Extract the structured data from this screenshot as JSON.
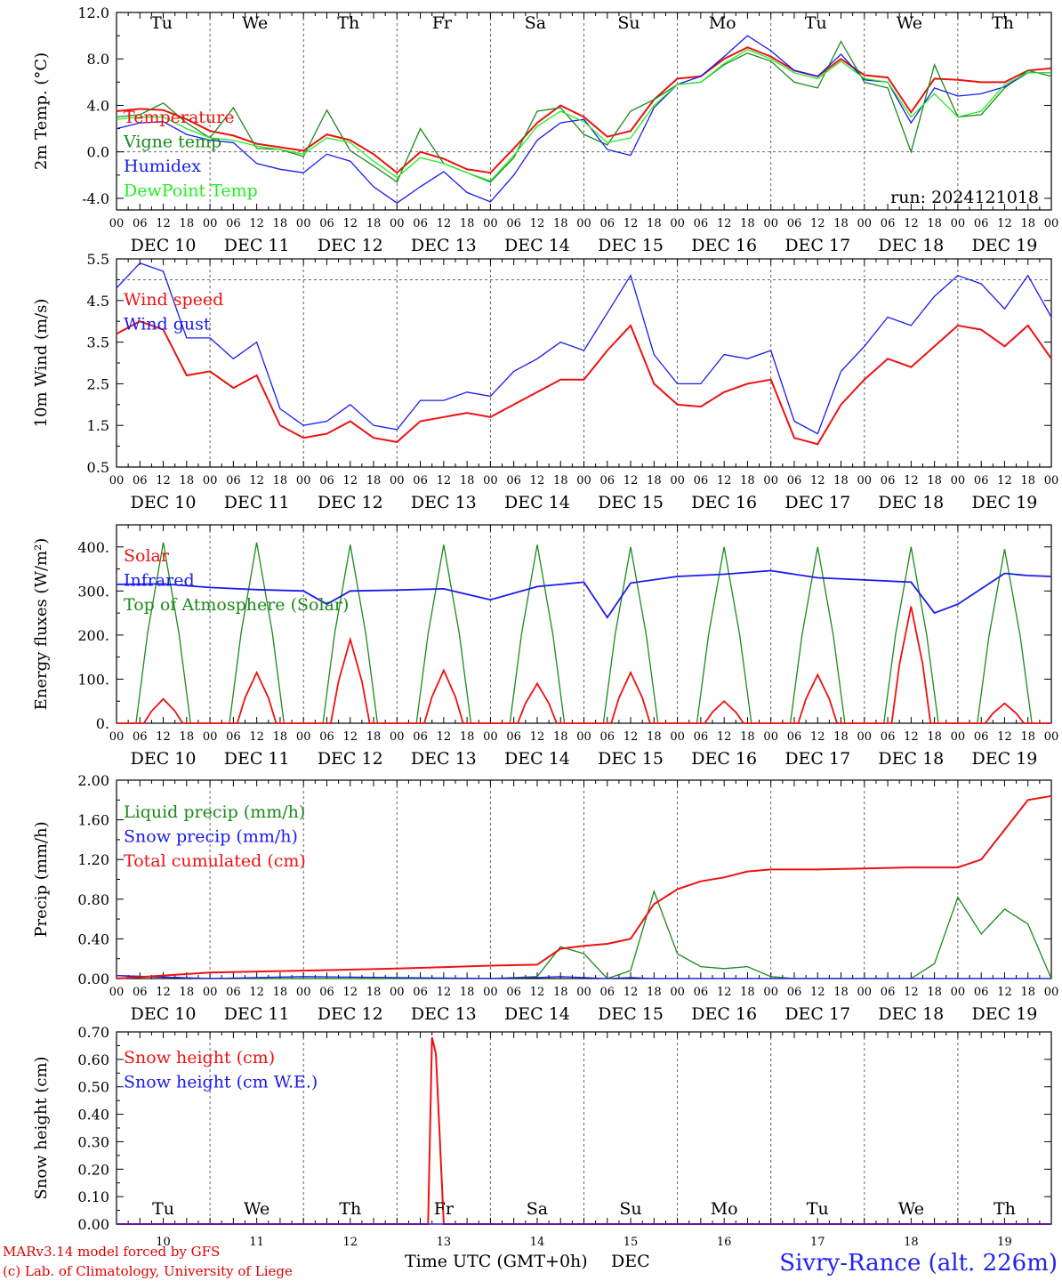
{
  "days": [
    "10",
    "11",
    "12",
    "13",
    "14",
    "15",
    "16",
    "17",
    "18",
    "19"
  ],
  "date_labels": [
    "DEC 10",
    "DEC 11",
    "DEC 12",
    "DEC 13",
    "DEC 14",
    "DEC 15",
    "DEC 16",
    "DEC 17",
    "DEC 18",
    "DEC 19"
  ],
  "hour_ticks": [
    "00",
    "06",
    "12",
    "18"
  ],
  "weekdays": [
    {
      "label": "Tu",
      "color": "#000000"
    },
    {
      "label": "We",
      "color": "#000000"
    },
    {
      "label": "Th",
      "color": "#000000"
    },
    {
      "label": "Fr",
      "color": "#000000"
    },
    {
      "label": "Sa",
      "color": "#ee0000"
    },
    {
      "label": "Su",
      "color": "#ee0000"
    },
    {
      "label": "Mo",
      "color": "#000000"
    },
    {
      "label": "Tu",
      "color": "#000000"
    },
    {
      "label": "We",
      "color": "#000000"
    },
    {
      "label": "Th",
      "color": "#000000"
    }
  ],
  "run_label": "run: 2024121018",
  "footer": {
    "model": "MARv3.14 model forced by GFS",
    "credit": "(c) Lab. of Climatology, University of Liege",
    "xtitle": "Time UTC (GMT+0h)",
    "xunit": "DEC",
    "station": "Sivry-Rance (alt. 226m)"
  },
  "colors": {
    "red": "#ee1111",
    "green": "#1a8a1a",
    "blue": "#1a1aee",
    "lightgreen": "#22ee22"
  },
  "chart_data": [
    {
      "type": "line",
      "ylabel": "2m Temp. (°C)",
      "ylim": [
        -5.0,
        12.0
      ],
      "yticks": [
        "12.0",
        "8.0",
        "4.0",
        "0.0",
        "-4.0"
      ],
      "ytick_values": [
        12,
        8,
        4,
        0,
        -4
      ],
      "ref_line": 0.0,
      "x_hours": [
        0,
        6,
        12,
        18,
        24,
        30,
        36,
        42,
        48,
        54,
        60,
        66,
        72,
        78,
        84,
        90,
        96,
        102,
        108,
        114,
        120,
        126,
        132,
        138,
        144,
        150,
        156,
        162,
        168,
        174,
        180,
        186,
        192,
        198,
        204,
        210,
        216,
        222,
        228,
        234,
        240
      ],
      "series": [
        {
          "name": "Temperature",
          "color": "#ee1111",
          "values": [
            3.5,
            3.7,
            3.6,
            2.8,
            1.8,
            1.4,
            0.7,
            0.4,
            0.1,
            1.5,
            1.0,
            -0.2,
            -1.8,
            0.0,
            -0.6,
            -1.5,
            -1.8,
            0.3,
            2.5,
            4.0,
            3.0,
            1.3,
            1.8,
            4.5,
            6.3,
            6.5,
            8.0,
            9.0,
            8.2,
            7.0,
            6.5,
            8.0,
            6.6,
            6.4,
            3.4,
            6.3,
            6.2,
            6.0,
            6.0,
            7.0,
            7.2
          ]
        },
        {
          "name": "Vigne temp",
          "color": "#1a8a1a",
          "values": [
            3.0,
            3.2,
            4.2,
            2.5,
            1.2,
            3.8,
            0.3,
            0.2,
            -0.4,
            3.6,
            0.1,
            -1.2,
            -2.6,
            2.0,
            -1.0,
            -1.8,
            -2.6,
            -0.5,
            3.5,
            3.8,
            1.5,
            0.6,
            3.5,
            4.5,
            5.8,
            6.0,
            7.5,
            8.5,
            7.8,
            6.0,
            5.5,
            9.5,
            6.0,
            5.5,
            0.0,
            7.5,
            3.0,
            3.2,
            5.5,
            7.0,
            6.5
          ]
        },
        {
          "name": "Humidex",
          "color": "#1a1aee",
          "values": [
            2.0,
            2.5,
            2.6,
            1.5,
            1.0,
            0.8,
            -1.0,
            -1.5,
            -1.8,
            -0.2,
            -0.8,
            -3.0,
            -4.4,
            -3.0,
            -1.7,
            -3.5,
            -4.3,
            -2.0,
            1.0,
            2.5,
            2.8,
            0.2,
            -0.3,
            3.8,
            5.8,
            6.5,
            8.2,
            10.0,
            8.7,
            7.0,
            6.5,
            8.4,
            6.2,
            6.0,
            2.5,
            5.5,
            4.8,
            5.0,
            5.6,
            6.8,
            6.8
          ]
        },
        {
          "name": "DewPoint Temp",
          "color": "#22ee22",
          "values": [
            2.8,
            3.0,
            3.0,
            2.0,
            1.2,
            1.0,
            0.5,
            0.2,
            -0.2,
            1.2,
            0.8,
            -0.8,
            -2.2,
            -0.5,
            -1.0,
            -1.8,
            -2.5,
            -0.3,
            2.2,
            3.5,
            2.6,
            0.8,
            1.2,
            4.0,
            5.8,
            6.0,
            7.6,
            8.8,
            8.0,
            6.8,
            6.3,
            7.8,
            6.3,
            6.0,
            3.0,
            5.0,
            3.0,
            3.5,
            5.8,
            6.8,
            6.8
          ]
        }
      ]
    },
    {
      "type": "line",
      "ylabel": "10m Wind (m/s)",
      "ylim": [
        0.5,
        5.5
      ],
      "yticks": [
        "5.5",
        "4.5",
        "3.5",
        "2.5",
        "1.5",
        "0.5"
      ],
      "ytick_values": [
        5.5,
        4.5,
        3.5,
        2.5,
        1.5,
        0.5
      ],
      "ref_line": 5.0,
      "x_hours": [
        0,
        6,
        12,
        18,
        24,
        30,
        36,
        42,
        48,
        54,
        60,
        66,
        72,
        78,
        84,
        90,
        96,
        102,
        108,
        114,
        120,
        126,
        132,
        138,
        144,
        150,
        156,
        162,
        168,
        174,
        180,
        186,
        192,
        198,
        204,
        210,
        216,
        222,
        228,
        234,
        240
      ],
      "series": [
        {
          "name": "Wind speed",
          "color": "#ee1111",
          "values": [
            3.7,
            4.0,
            3.8,
            2.7,
            2.8,
            2.4,
            2.7,
            1.5,
            1.2,
            1.3,
            1.6,
            1.2,
            1.1,
            1.6,
            1.7,
            1.8,
            1.7,
            2.0,
            2.3,
            2.6,
            2.6,
            3.3,
            3.9,
            2.5,
            2.0,
            1.95,
            2.3,
            2.5,
            2.6,
            1.2,
            1.05,
            2.0,
            2.6,
            3.1,
            2.9,
            3.4,
            3.9,
            3.8,
            3.4,
            3.9,
            3.1
          ]
        },
        {
          "name": "Wind gust",
          "color": "#1a1aee",
          "values": [
            4.8,
            5.4,
            5.2,
            3.6,
            3.6,
            3.1,
            3.5,
            1.9,
            1.5,
            1.6,
            2.0,
            1.5,
            1.4,
            2.1,
            2.1,
            2.3,
            2.2,
            2.8,
            3.1,
            3.5,
            3.3,
            4.2,
            5.1,
            3.2,
            2.5,
            2.5,
            3.2,
            3.1,
            3.3,
            1.6,
            1.3,
            2.8,
            3.4,
            4.1,
            3.9,
            4.6,
            5.1,
            4.9,
            4.3,
            5.1,
            4.1
          ]
        }
      ]
    },
    {
      "type": "line",
      "ylabel": "Energy fluxes (W/m²)",
      "ylim": [
        0,
        450
      ],
      "yticks": [
        "400.",
        "300.",
        "200.",
        "100.",
        "0."
      ],
      "ytick_values": [
        400,
        300,
        200,
        100,
        0
      ],
      "peaks": [
        {
          "day": 0,
          "solar": 55,
          "toa": 410
        },
        {
          "day": 1,
          "solar": 115,
          "toa": 410
        },
        {
          "day": 2,
          "solar": 190,
          "toa": 405
        },
        {
          "day": 3,
          "solar": 120,
          "toa": 405
        },
        {
          "day": 4,
          "solar": 90,
          "toa": 405
        },
        {
          "day": 5,
          "solar": 115,
          "toa": 400
        },
        {
          "day": 6,
          "solar": 50,
          "toa": 400
        },
        {
          "day": 7,
          "solar": 110,
          "toa": 400
        },
        {
          "day": 8,
          "solar": 265,
          "toa": 400
        },
        {
          "day": 9,
          "solar": 45,
          "toa": 395
        }
      ],
      "x_hours": [
        0,
        12,
        24,
        36,
        48,
        54,
        60,
        72,
        84,
        96,
        108,
        120,
        126,
        132,
        144,
        156,
        168,
        180,
        192,
        204,
        210,
        216,
        228,
        234,
        240
      ],
      "series": [
        {
          "name": "Solar",
          "color": "#ee1111"
        },
        {
          "name": "Infrared",
          "color": "#1a1aee",
          "values": [
            315,
            316,
            308,
            303,
            300,
            270,
            300,
            302,
            305,
            280,
            310,
            320,
            240,
            318,
            333,
            338,
            346,
            330,
            325,
            320,
            250,
            270,
            340,
            335,
            333
          ]
        },
        {
          "name": "Top of Atmosphere (Solar)",
          "color": "#1a8a1a"
        }
      ]
    },
    {
      "type": "line",
      "ylabel": "Precip (mm/h)",
      "ylim": [
        0.0,
        2.0
      ],
      "yticks": [
        "2.00",
        "1.60",
        "1.20",
        "0.80",
        "0.40",
        "0.00"
      ],
      "ytick_values": [
        2.0,
        1.6,
        1.2,
        0.8,
        0.4,
        0.0
      ],
      "x_hours": [
        0,
        24,
        48,
        72,
        96,
        108,
        114,
        120,
        126,
        132,
        138,
        144,
        150,
        156,
        162,
        168,
        174,
        180,
        192,
        204,
        210,
        216,
        222,
        228,
        234,
        240
      ],
      "series": [
        {
          "name": "Liquid precip (mm/h)",
          "color": "#1a8a1a",
          "values": [
            0.03,
            0.0,
            0.0,
            0.0,
            0.0,
            0.02,
            0.32,
            0.25,
            0.0,
            0.08,
            0.88,
            0.25,
            0.12,
            0.1,
            0.12,
            0.02,
            0.0,
            0.0,
            0.0,
            0.0,
            0.15,
            0.82,
            0.45,
            0.7,
            0.55,
            0.0
          ]
        },
        {
          "name": "Snow precip (mm/h)",
          "color": "#1a1aee",
          "values": [
            0.03,
            0.0,
            0.02,
            0.01,
            0.0,
            0.01,
            0.02,
            0.01,
            0.0,
            0.01,
            0.0,
            0.0,
            0.0,
            0.0,
            0.0,
            0.0,
            0.0,
            0.0,
            0.0,
            0.0,
            0.0,
            0.0,
            0.0,
            0.0,
            0.0,
            0.0
          ]
        },
        {
          "name": "Total cumulated (cm)",
          "color": "#ee1111",
          "values": [
            0.0,
            0.06,
            0.08,
            0.1,
            0.13,
            0.14,
            0.3,
            0.33,
            0.35,
            0.4,
            0.75,
            0.9,
            0.98,
            1.02,
            1.08,
            1.1,
            1.1,
            1.1,
            1.11,
            1.12,
            1.12,
            1.12,
            1.2,
            1.5,
            1.8,
            1.84
          ]
        }
      ]
    },
    {
      "type": "line",
      "ylabel": "Snow height (cm)",
      "ylim": [
        0.0,
        0.7
      ],
      "yticks": [
        "0.70",
        "0.60",
        "0.50",
        "0.40",
        "0.30",
        "0.20",
        "0.10",
        "0.00"
      ],
      "ytick_values": [
        0.7,
        0.6,
        0.5,
        0.4,
        0.3,
        0.2,
        0.1,
        0.0
      ],
      "x_hours": [
        0,
        80,
        81,
        82,
        84,
        240
      ],
      "series": [
        {
          "name": "Snow height (cm)",
          "color": "#ee1111",
          "values": [
            0.0,
            0.0,
            0.68,
            0.62,
            0.0,
            0.0
          ]
        },
        {
          "name": "Snow height (cm W.E.)",
          "color": "#1a1aee",
          "values": [
            0.0,
            0.0,
            0.0,
            0.0,
            0.0,
            0.0
          ]
        }
      ]
    }
  ]
}
